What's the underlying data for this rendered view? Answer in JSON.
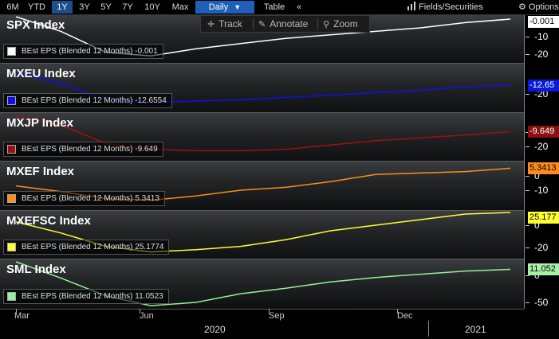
{
  "toolbar": {
    "periods": [
      "6M",
      "YTD",
      "1Y",
      "3Y",
      "5Y",
      "7Y",
      "10Y",
      "Max"
    ],
    "active_period": "1Y",
    "frequency": "Daily",
    "dropdown_arrow": "▼",
    "table_label": "Table",
    "collapse": "«",
    "fields_label": "Fields/Securities",
    "options_label": "Options"
  },
  "subbar": {
    "track": "Track",
    "annotate": "Annotate",
    "zoom": "Zoom"
  },
  "panels": [
    {
      "title": "SPX Index",
      "legend": "BEst EPS (Blended 12 Months) -0.001",
      "color": "#ffffff",
      "badge": "-0.001",
      "badge_bg": "#ffffff",
      "badge_fg": "#000000",
      "ticks": [
        "-10",
        "-20"
      ]
    },
    {
      "title": "MXEU Index",
      "legend": "BEst EPS (Blended 12 Months) -12.6554",
      "color": "#1010e8",
      "badge": "-12.65",
      "badge_bg": "#0a1ad8",
      "badge_fg": "#ffffff",
      "ticks": [
        "-20"
      ]
    },
    {
      "title": "MXJP Index",
      "legend": "BEst EPS (Blended 12 Months) -9.649",
      "color": "#a01010",
      "badge": "-9.649",
      "badge_bg": "#8b0f0f",
      "badge_fg": "#ffffff",
      "ticks": [
        "-10",
        "-20"
      ]
    },
    {
      "title": "MXEF Index",
      "legend": "BEst EPS (Blended 12 Months) 5.3413",
      "color": "#ff8c1a",
      "badge": "5.3413",
      "badge_bg": "#ff8c1a",
      "badge_fg": "#000000",
      "ticks": [
        "0",
        "-10"
      ]
    },
    {
      "title": "MXEFSC Index",
      "legend": "BEst EPS (Blended 12 Months) 25.1774",
      "color": "#ffff33",
      "badge": "25.177",
      "badge_bg": "#ffff33",
      "badge_fg": "#000000",
      "ticks": [
        "0",
        "-20"
      ]
    },
    {
      "title": "SML Index",
      "legend": "BEst EPS (Blended 12 Months) 11.0523",
      "color": "#99ee99",
      "badge": "11.052",
      "badge_bg": "#a8f0a8",
      "badge_fg": "#000000",
      "ticks": [
        "0",
        "-50"
      ]
    }
  ],
  "x_axis": {
    "months": [
      "Mar",
      "Jun",
      "Sep",
      "Dec"
    ],
    "years": [
      "2020",
      "2021"
    ]
  },
  "chart_data": {
    "type": "line",
    "x": [
      "2020-03",
      "2020-04",
      "2020-05",
      "2020-06",
      "2020-07",
      "2020-08",
      "2020-09",
      "2020-10",
      "2020-11",
      "2020-12",
      "2021-01",
      "2021-02"
    ],
    "series": [
      {
        "name": "SPX Index",
        "values": [
          6,
          -7,
          -19,
          -21,
          -17,
          -14,
          -11,
          -9,
          -7,
          -5,
          -2,
          -0.001
        ]
      },
      {
        "name": "MXEU Index",
        "values": [
          -2,
          -11,
          -25,
          -27,
          -26,
          -25,
          -23,
          -21,
          -19,
          -17,
          -14,
          -12.6554
        ]
      },
      {
        "name": "MXJP Index",
        "values": [
          1,
          -5,
          -18,
          -22,
          -23,
          -23,
          -22,
          -19,
          -16,
          -14,
          -12,
          -9.649
        ]
      },
      {
        "name": "MXEF Index",
        "values": [
          -7,
          -11,
          -16,
          -17,
          -14,
          -10,
          -8,
          -4,
          1,
          2,
          3,
          5.3413
        ]
      },
      {
        "name": "MXEFSC Index",
        "values": [
          3,
          -7,
          -19,
          -24,
          -22,
          -19,
          -13,
          -5,
          0,
          5,
          10,
          25.1774
        ]
      },
      {
        "name": "SML Index",
        "values": [
          25,
          -5,
          -38,
          -56,
          -50,
          -34,
          -24,
          -12,
          -4,
          2,
          8,
          11.0523
        ]
      }
    ]
  }
}
